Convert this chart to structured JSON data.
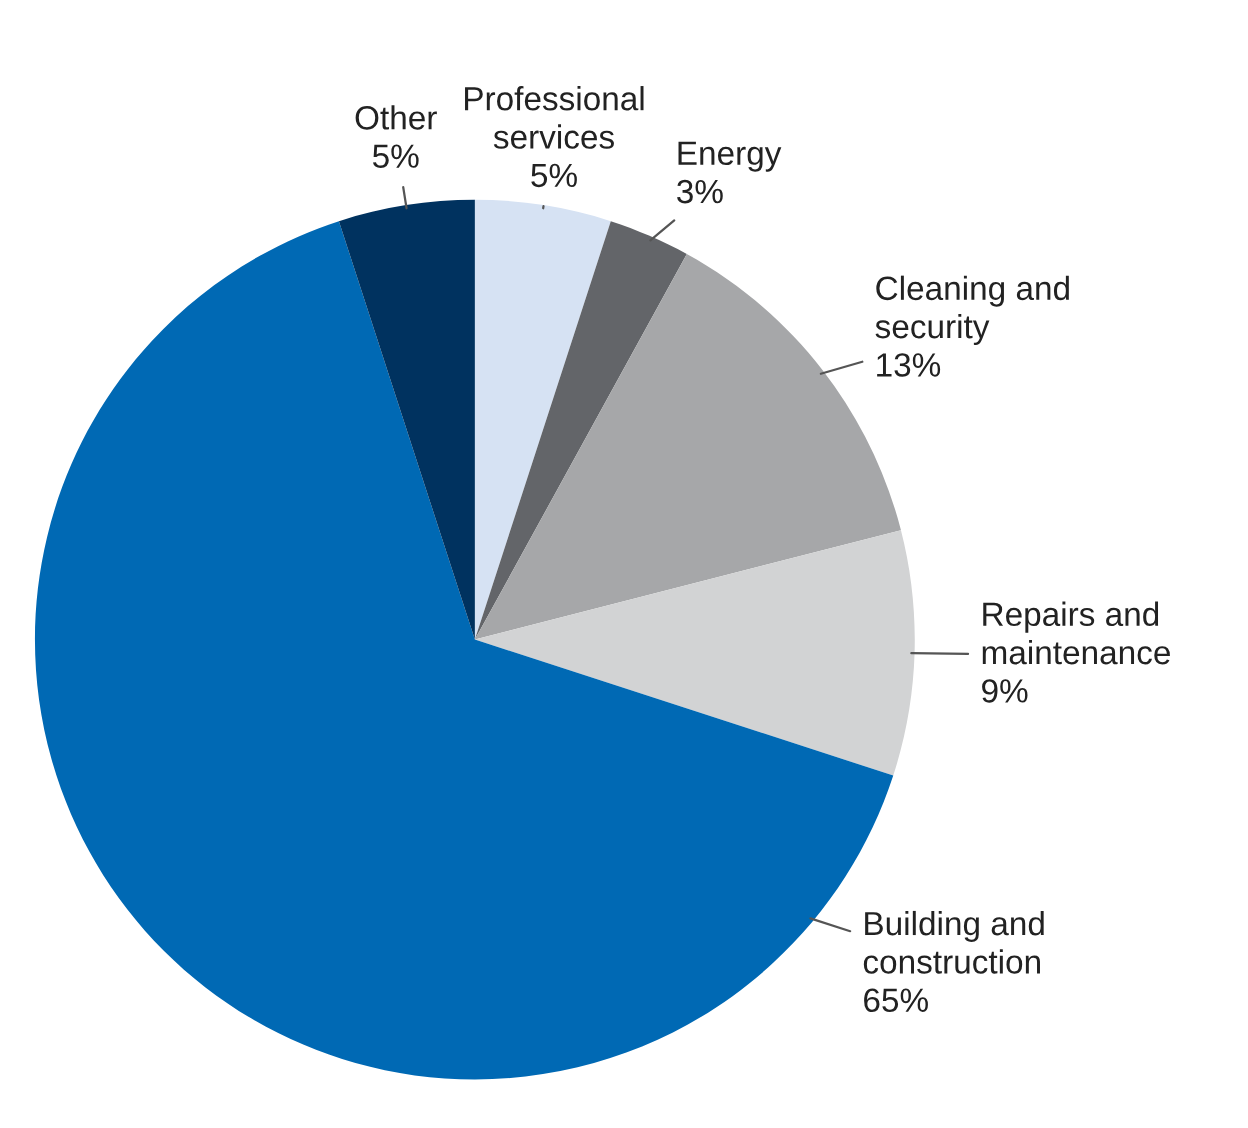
{
  "chart_data": {
    "type": "pie",
    "categories": [
      "Professional\nservices",
      "Energy",
      "Cleaning and\nsecurity",
      "Repairs and\nmaintenance",
      "Building and\nconstruction",
      "Other"
    ],
    "values": [
      5,
      3,
      13,
      9,
      65,
      5
    ],
    "value_labels": [
      "5%",
      "3%",
      "13%",
      "9%",
      "65%",
      "5%"
    ],
    "colors": [
      "#d6e2f3",
      "#636569",
      "#a6a7a9",
      "#d2d3d4",
      "#0069b4",
      "#00325f"
    ],
    "legend": false
  }
}
